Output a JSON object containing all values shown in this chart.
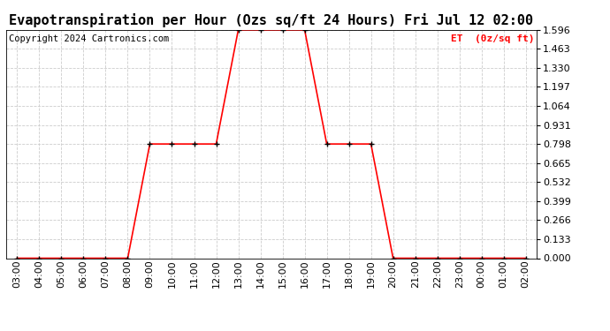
{
  "title": "Evapotranspiration per Hour (Ozs sq/ft 24 Hours) Fri Jul 12 02:00",
  "copyright": "Copyright 2024 Cartronics.com",
  "legend_label": "ET  (0z/sq ft)",
  "x_labels": [
    "03:00",
    "04:00",
    "05:00",
    "06:00",
    "07:00",
    "08:00",
    "09:00",
    "10:00",
    "11:00",
    "12:00",
    "13:00",
    "14:00",
    "15:00",
    "16:00",
    "17:00",
    "18:00",
    "19:00",
    "20:00",
    "21:00",
    "22:00",
    "23:00",
    "00:00",
    "01:00",
    "02:00"
  ],
  "y_values": [
    0.0,
    0.0,
    0.0,
    0.0,
    0.0,
    0.0,
    0.798,
    0.798,
    0.798,
    0.798,
    1.596,
    1.596,
    1.596,
    1.596,
    0.798,
    0.798,
    0.798,
    0.0,
    0.0,
    0.0,
    0.0,
    0.0,
    0.0,
    0.0
  ],
  "y_ticks": [
    0.0,
    0.133,
    0.266,
    0.399,
    0.532,
    0.665,
    0.798,
    0.931,
    1.064,
    1.197,
    1.33,
    1.463,
    1.596
  ],
  "ylim": [
    0.0,
    1.596
  ],
  "line_color": "#ff0000",
  "marker_color": "#000000",
  "grid_color": "#cccccc",
  "background_color": "#ffffff",
  "title_fontsize": 11,
  "copyright_fontsize": 7.5,
  "legend_color": "#ff0000",
  "tick_fontsize": 8,
  "legend_fontsize": 8
}
